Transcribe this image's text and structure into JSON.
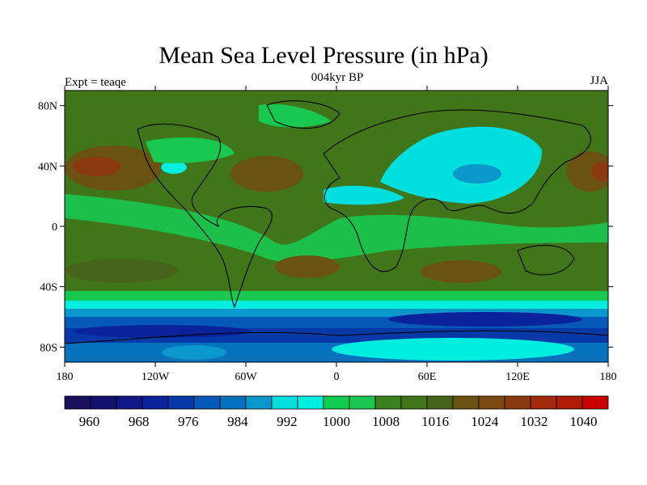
{
  "title": "Mean Sea Level Pressure (in hPa)",
  "subtitle_center": "004kyr BP",
  "subtitle_left": "Expt = teaqe",
  "subtitle_right": "JJA",
  "map": {
    "projection": "cylindrical-equidistant",
    "lon_range": [
      -180,
      180
    ],
    "lat_range": [
      -90,
      90
    ],
    "lat_ticks": [
      {
        "value": 80,
        "label": "80N"
      },
      {
        "value": 40,
        "label": "40N"
      },
      {
        "value": 0,
        "label": "0"
      },
      {
        "value": -40,
        "label": "40S"
      },
      {
        "value": -80,
        "label": "80S"
      }
    ],
    "lon_ticks": [
      {
        "value": -180,
        "label": "180"
      },
      {
        "value": -120,
        "label": "120W"
      },
      {
        "value": -60,
        "label": "60W"
      },
      {
        "value": 0,
        "label": "0"
      },
      {
        "value": 60,
        "label": "60E"
      },
      {
        "value": 120,
        "label": "120E"
      },
      {
        "value": 180,
        "label": "180"
      }
    ]
  },
  "colorbar": {
    "min": 956,
    "max": 1044,
    "step": 4,
    "labels": [
      "960",
      "968",
      "976",
      "984",
      "992",
      "1000",
      "1008",
      "1016",
      "1024",
      "1032",
      "1040"
    ],
    "label_values": [
      960,
      968,
      976,
      984,
      992,
      1000,
      1008,
      1016,
      1024,
      1032,
      1040
    ],
    "colors": [
      "#1a0f5a",
      "#14106e",
      "#101683",
      "#0a229a",
      "#0638a8",
      "#0559b8",
      "#0672be",
      "#0a97cc",
      "#00dede",
      "#00eee0",
      "#10cc4e",
      "#18c850",
      "#3a821e",
      "#40751a",
      "#47651a",
      "#6a5212",
      "#7a4a12",
      "#8a3a0e",
      "#a02a0a",
      "#ae1c08",
      "#c80000"
    ]
  },
  "colors": {
    "land_border": "#000000",
    "background": "#ffffff"
  }
}
